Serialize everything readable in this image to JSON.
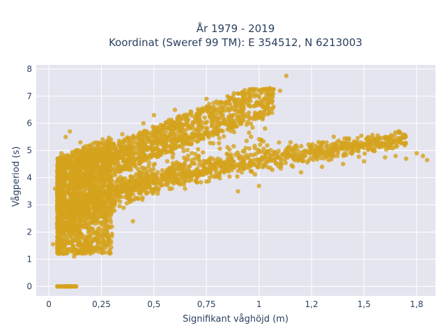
{
  "chart_data": {
    "type": "scatter",
    "title_line1": "År 1979 - 2019",
    "title_line2": "Koordinat (Sweref 99 TM): E 354512, N 6213003",
    "xlabel": "Signifikant våghöjd (m)",
    "ylabel": "Vågperiod (s)",
    "xlim": [
      -0.06,
      1.84
    ],
    "ylim": [
      -0.35,
      8.15
    ],
    "x_ticks": [
      0,
      0.25,
      0.5,
      0.75,
      1,
      1.25,
      1.5,
      1.75
    ],
    "x_tick_labels": [
      "0",
      "0,25",
      "0,5",
      "0,75",
      "1",
      "1,2",
      "1,5",
      "1,8"
    ],
    "y_ticks": [
      0,
      1,
      2,
      3,
      4,
      5,
      6,
      7,
      8
    ],
    "y_tick_labels": [
      "0",
      "1",
      "2",
      "3",
      "4",
      "5",
      "6",
      "7",
      "8"
    ],
    "grid": true,
    "plot_background": "#e5e5f0",
    "grid_color": "#ffffff",
    "marker_color": "#d4a21d",
    "marker_opacity": 0.8,
    "points_sample": [
      [
        0.04,
        0.0
      ],
      [
        0.06,
        0.0
      ],
      [
        0.08,
        0.0
      ],
      [
        0.1,
        0.0
      ],
      [
        0.12,
        0.0
      ],
      [
        0.13,
        0.0
      ],
      [
        0.02,
        1.55
      ],
      [
        0.03,
        3.6
      ],
      [
        0.05,
        2.5
      ],
      [
        0.06,
        4.9
      ],
      [
        0.07,
        1.2
      ],
      [
        0.08,
        5.5
      ],
      [
        0.1,
        5.7
      ],
      [
        0.12,
        1.1
      ],
      [
        0.15,
        5.3
      ],
      [
        0.2,
        1.9
      ],
      [
        0.3,
        2.2
      ],
      [
        0.4,
        2.4
      ],
      [
        0.35,
        5.6
      ],
      [
        0.45,
        6.0
      ],
      [
        0.5,
        6.3
      ],
      [
        0.6,
        6.5
      ],
      [
        0.75,
        6.9
      ],
      [
        0.85,
        7.0
      ],
      [
        0.95,
        7.1
      ],
      [
        1.0,
        7.2
      ],
      [
        1.05,
        7.3
      ],
      [
        1.1,
        7.2
      ],
      [
        1.15,
        5.3
      ],
      [
        1.13,
        7.75
      ],
      [
        0.9,
        3.5
      ],
      [
        1.0,
        3.7
      ],
      [
        1.2,
        4.2
      ],
      [
        1.3,
        4.4
      ],
      [
        1.4,
        4.5
      ],
      [
        1.5,
        4.6
      ],
      [
        1.6,
        4.75
      ],
      [
        1.65,
        4.8
      ],
      [
        1.7,
        4.7
      ],
      [
        1.75,
        4.9
      ],
      [
        1.78,
        4.8
      ],
      [
        1.8,
        4.65
      ]
    ]
  }
}
